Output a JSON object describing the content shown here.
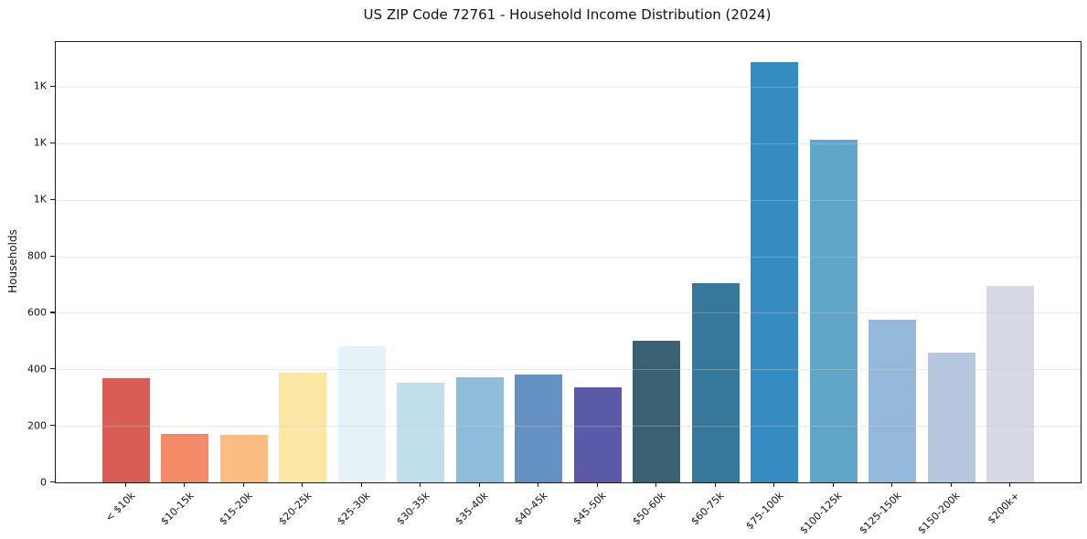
{
  "title": "US ZIP Code 72761 - Household Income Distribution (2024)",
  "chart_data": {
    "type": "bar",
    "title": "US ZIP Code 72761 - Household Income Distribution (2024)",
    "xlabel": "",
    "ylabel": "Households",
    "legend": "none",
    "grid": "horizontal gridlines, light gray, drawn over bars",
    "categories": [
      "< $10k",
      "$10-15k",
      "$15-20k",
      "$20-25k",
      "$25-30k",
      "$30-35k",
      "$35-40k",
      "$40-45k",
      "$45-50k",
      "$50-60k",
      "$60-75k",
      "$75-100k",
      "$100-125k",
      "$125-150k",
      "$150-200k",
      "$200k+"
    ],
    "values": [
      370,
      170,
      168,
      388,
      482,
      353,
      371,
      382,
      336,
      502,
      706,
      1486,
      1212,
      577,
      460,
      695
    ],
    "bar_colors": [
      "#d95c55",
      "#f48a68",
      "#fcbd80",
      "#fce8a4",
      "#e5f2f7",
      "#c0e0ec",
      "#90bcdc",
      "#6590c2",
      "#5a5aa8",
      "#3a6073",
      "#35789c",
      "#358cc0",
      "#5fa6c9",
      "#93b8d9",
      "#b7c7e0",
      "#d7d9e5"
    ],
    "ylim": [
      0,
      1558
    ],
    "yticks": {
      "values": [
        0,
        200,
        400,
        600,
        800,
        1000,
        1200,
        1400
      ],
      "labels": [
        "0",
        "200",
        "400",
        "600",
        "800",
        "1K",
        "1K",
        "1K"
      ]
    }
  }
}
